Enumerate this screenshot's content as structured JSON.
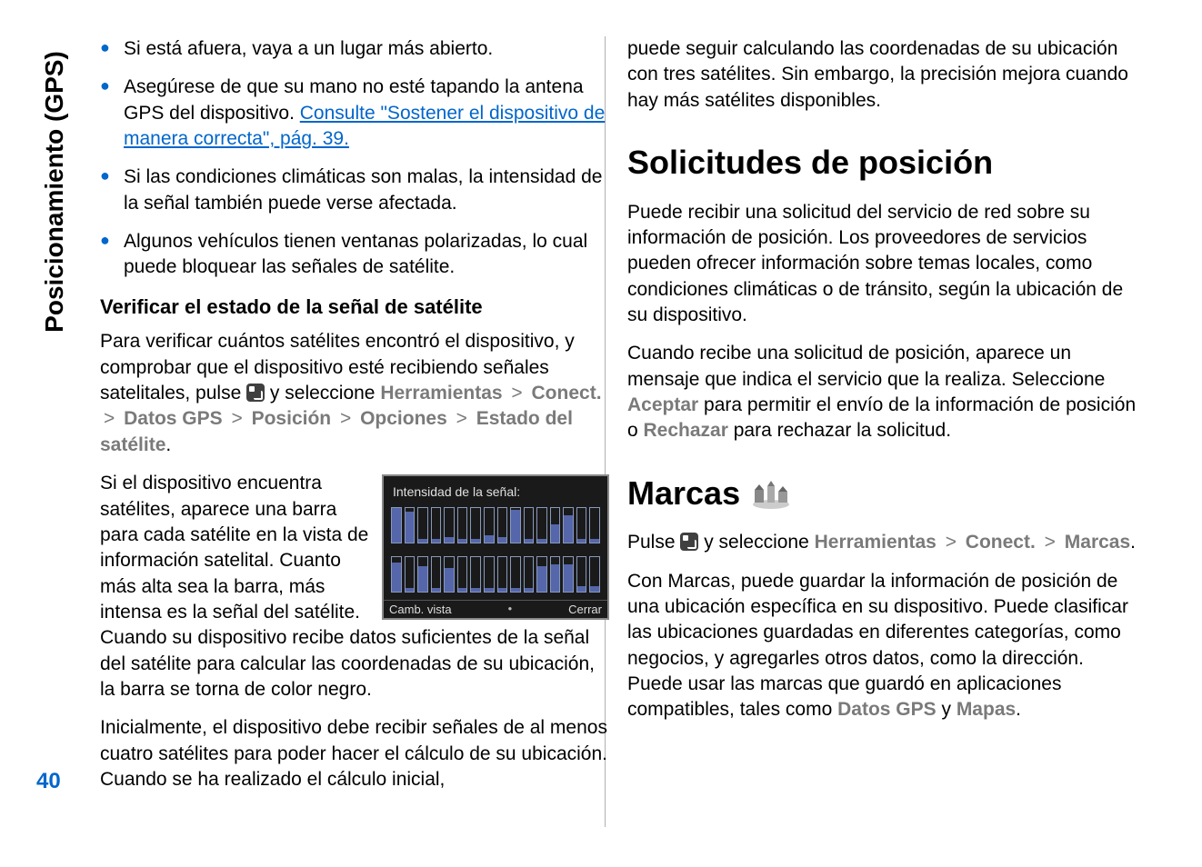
{
  "spine": {
    "section_label": "Posicionamiento (GPS)",
    "page_number": "40"
  },
  "col1": {
    "bullets": [
      {
        "text": "Si está afuera, vaya a un lugar más abierto."
      },
      {
        "text_a": "Asegúrese de que su mano no esté tapando la antena GPS del dispositivo. ",
        "link": "Consulte \"Sostener el dispositivo de manera correcta\", pág. 39."
      },
      {
        "text": "Si las condiciones climáticas son malas, la intensidad de la señal también puede verse afectada."
      },
      {
        "text": "Algunos vehículos tienen ventanas polarizadas, lo cual puede bloquear las señales de satélite."
      }
    ],
    "subhead": "Verificar el estado de la señal de satélite",
    "nav_para": {
      "pre": "Para verificar cuántos satélites encontró el dispositivo, y comprobar que el dispositivo esté recibiendo señales satelitales, pulse ",
      "mid": " y seleccione ",
      "path": [
        "Herramientas",
        "Conect.",
        "Datos GPS",
        "Posición",
        "Opciones",
        "Estado del satélite"
      ],
      "sep": ">",
      "post": "."
    },
    "float_para": "Si el dispositivo encuentra satélites, aparece una barra para cada satélite en la vista de información satelital. Cuanto más alta sea la barra, más intensa es la señal del satélite. Cuando su dispositivo recibe datos suficientes de la señal del satélite para calcular las coordenadas de su ubicación, la barra se torna de color negro.",
    "screenshot": {
      "title": "Intensidad de la señal:",
      "bars_top": {
        "count": 16,
        "heights": [
          38,
          34,
          4,
          4,
          6,
          4,
          4,
          8,
          6,
          36,
          4,
          4,
          20,
          30,
          4,
          4
        ],
        "border_color": "#8899bb",
        "fill_color": "#5566aa"
      },
      "bars_bot": {
        "count": 16,
        "heights": [
          32,
          4,
          28,
          4,
          26,
          4,
          4,
          4,
          4,
          4,
          4,
          28,
          30,
          30,
          6,
          6
        ],
        "border_color": "#8899bb",
        "fill_color": "#5566aa"
      },
      "footer_left": "Camb. vista",
      "footer_right": "Cerrar",
      "bg": "#1a1a1a",
      "border": "#888888"
    },
    "para_last": "Inicialmente, el dispositivo debe recibir señales de al menos cuatro satélites para poder hacer el cálculo de su ubicación. Cuando se ha realizado el cálculo inicial,"
  },
  "col2": {
    "cont": "puede seguir calculando las coordenadas de su ubicación con tres satélites. Sin embargo, la precisión mejora cuando hay más satélites disponibles.",
    "h1a": "Solicitudes de posición",
    "para_a": "Puede recibir una solicitud del servicio de red sobre su información de posición. Los proveedores de servicios pueden ofrecer información sobre temas locales, como condiciones climáticas o de tránsito, según la ubicación de su dispositivo.",
    "para_b": {
      "pre": "Cuando recibe una solicitud de posición, aparece un mensaje que indica el servicio que la realiza. Seleccione ",
      "opt1": "Aceptar",
      "mid": " para permitir el envío de la información de posición o ",
      "opt2": "Rechazar",
      "post": " para rechazar la solicitud."
    },
    "h1b": "Marcas",
    "nav_para": {
      "pre": "Pulse ",
      "mid": " y seleccione ",
      "path": [
        "Herramientas",
        "Conect.",
        "Marcas"
      ],
      "sep": ">",
      "post": "."
    },
    "para_c": {
      "pre": "Con Marcas, puede guardar la información de posición de una ubicación específica en su dispositivo. Puede clasificar las ubicaciones guardadas en diferentes categorías, como negocios, y agregarles otros datos, como la dirección. Puede usar las marcas que guardó en aplicaciones compatibles, tales como ",
      "m1": "Datos GPS",
      "mid": " y ",
      "m2": "Mapas",
      "post": "."
    }
  },
  "colors": {
    "accent": "#0066cc",
    "menu_gray": "#7a7a7a",
    "text": "#000000",
    "divider": "#b0b0b0"
  },
  "typography": {
    "body_fontsize_pt": 16,
    "h1_fontsize_pt": 27,
    "subhead_fontsize_pt": 17
  }
}
